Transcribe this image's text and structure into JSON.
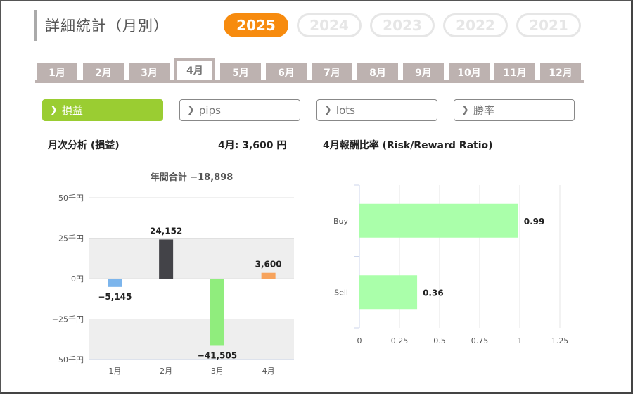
{
  "header": {
    "title": "詳細統計（月別）"
  },
  "years": [
    "2025",
    "2024",
    "2023",
    "2022",
    "2021"
  ],
  "active_year_index": 0,
  "months": [
    "1月",
    "2月",
    "3月",
    "4月",
    "5月",
    "6月",
    "7月",
    "8月",
    "9月",
    "10月",
    "11月",
    "12月"
  ],
  "active_month_index": 3,
  "metrics": [
    {
      "label": "損益",
      "active": true
    },
    {
      "label": "pips",
      "active": false
    },
    {
      "label": "lots",
      "active": false
    },
    {
      "label": "勝率",
      "active": false
    }
  ],
  "left_panel": {
    "title": "月次分析 (損益)",
    "month_value": "4月:  3,600 円"
  },
  "right_panel": {
    "title": "4月報酬比率 (Risk/Reward Ratio)"
  },
  "chart_data": [
    {
      "type": "bar",
      "title": "年間合計 −18,898",
      "categories": [
        "1月",
        "2月",
        "3月",
        "4月"
      ],
      "values": [
        -5145,
        24152,
        -41505,
        3600
      ],
      "value_labels": [
        "−5,145",
        "24,152",
        "−41,505",
        "3,600"
      ],
      "colors": [
        "#7cb5ec",
        "#434348",
        "#90ed7d",
        "#f7a35c"
      ],
      "ylim": [
        -50000,
        50000
      ],
      "yticks": [
        50000,
        25000,
        0,
        -25000,
        -50000
      ],
      "ytick_labels": [
        "50千円",
        "25千円",
        "0円",
        "−25千円",
        "−50千円"
      ],
      "alternate_bands": true
    },
    {
      "type": "bar",
      "orientation": "horizontal",
      "categories": [
        "Buy",
        "Sell"
      ],
      "values": [
        0.99,
        0.36
      ],
      "value_labels": [
        "0.99",
        "0.36"
      ],
      "color": "#aaffaa",
      "xlim": [
        0,
        1.25
      ],
      "xticks": [
        0,
        0.25,
        0.5,
        0.75,
        1,
        1.25
      ],
      "xtick_labels": [
        "0",
        "0.25",
        "0.5",
        "0.75",
        "1",
        "1.25"
      ],
      "grid": true
    }
  ]
}
